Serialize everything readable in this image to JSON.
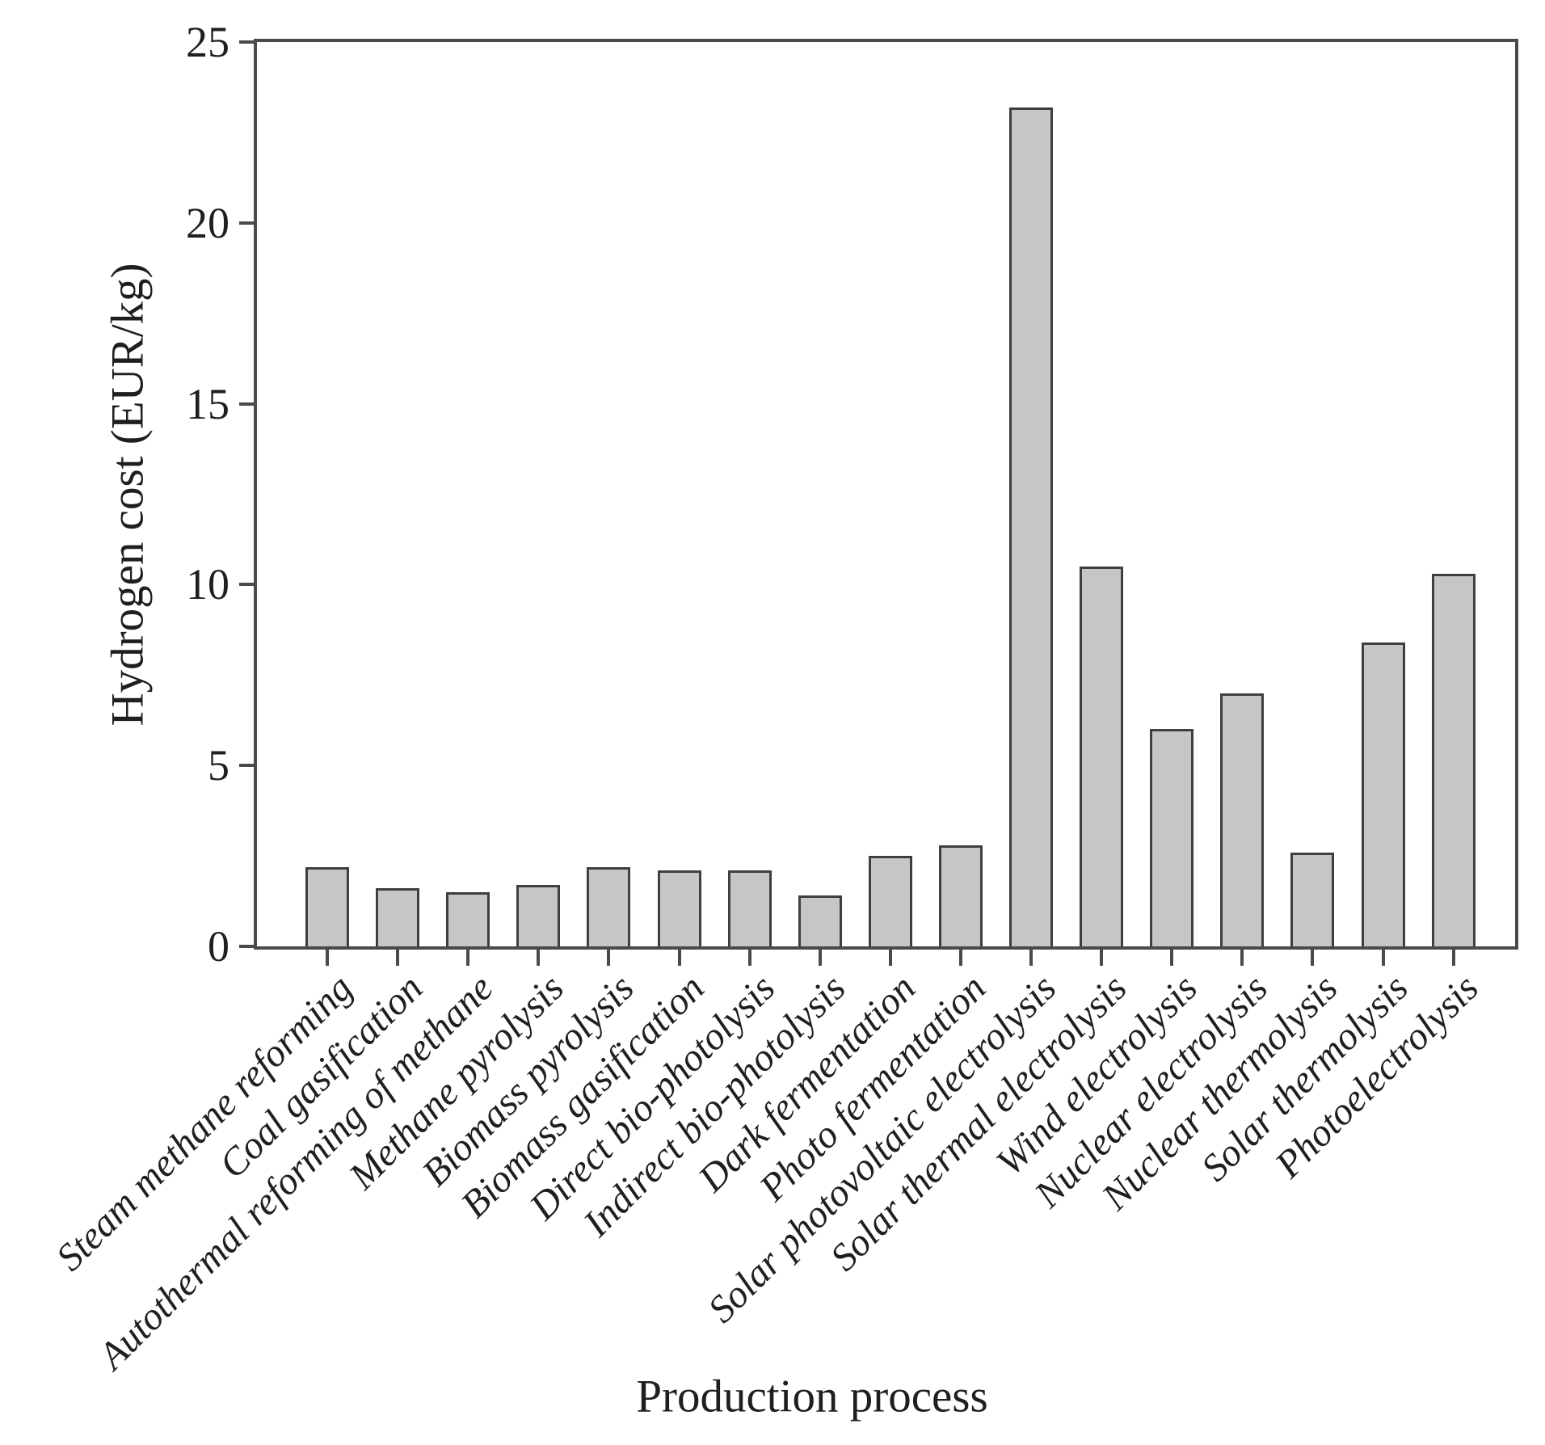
{
  "colors": {
    "background": "#ffffff",
    "bar_fill": "#c6c6c6",
    "bar_border": "#3f3f3f",
    "axis": "#4a4a4a",
    "text": "#1f1f1f"
  },
  "chart_data": {
    "type": "bar",
    "title": "",
    "xlabel": "Production process",
    "ylabel": "Hydrogen cost (EUR/kg)",
    "ylim": [
      0,
      25
    ],
    "yticks": [
      0,
      5,
      10,
      15,
      20,
      25
    ],
    "grid": false,
    "legend": null,
    "bar_color": "#c6c6c6",
    "categories": [
      "Steam methane reforming",
      "Coal gasification",
      "Autothermal reforming of methane",
      "Methane pyrolysis",
      "Biomass pyrolysis",
      "Biomass gasification",
      "Direct bio-photolysis",
      "Indirect bio-photolysis",
      "Dark fermentation",
      "Photo fermentation",
      "Solar photovoltaic electrolysis",
      "Solar thermal electrolysis",
      "Wind electrolysis",
      "Nuclear electrolysis",
      "Nuclear thermolysis",
      "Solar thermolysis",
      "Photoelectrolysis"
    ],
    "values": [
      2.2,
      1.6,
      1.5,
      1.7,
      2.2,
      2.1,
      2.1,
      1.4,
      2.5,
      2.8,
      23.2,
      10.5,
      6.0,
      7.0,
      2.6,
      8.4,
      10.3
    ]
  }
}
